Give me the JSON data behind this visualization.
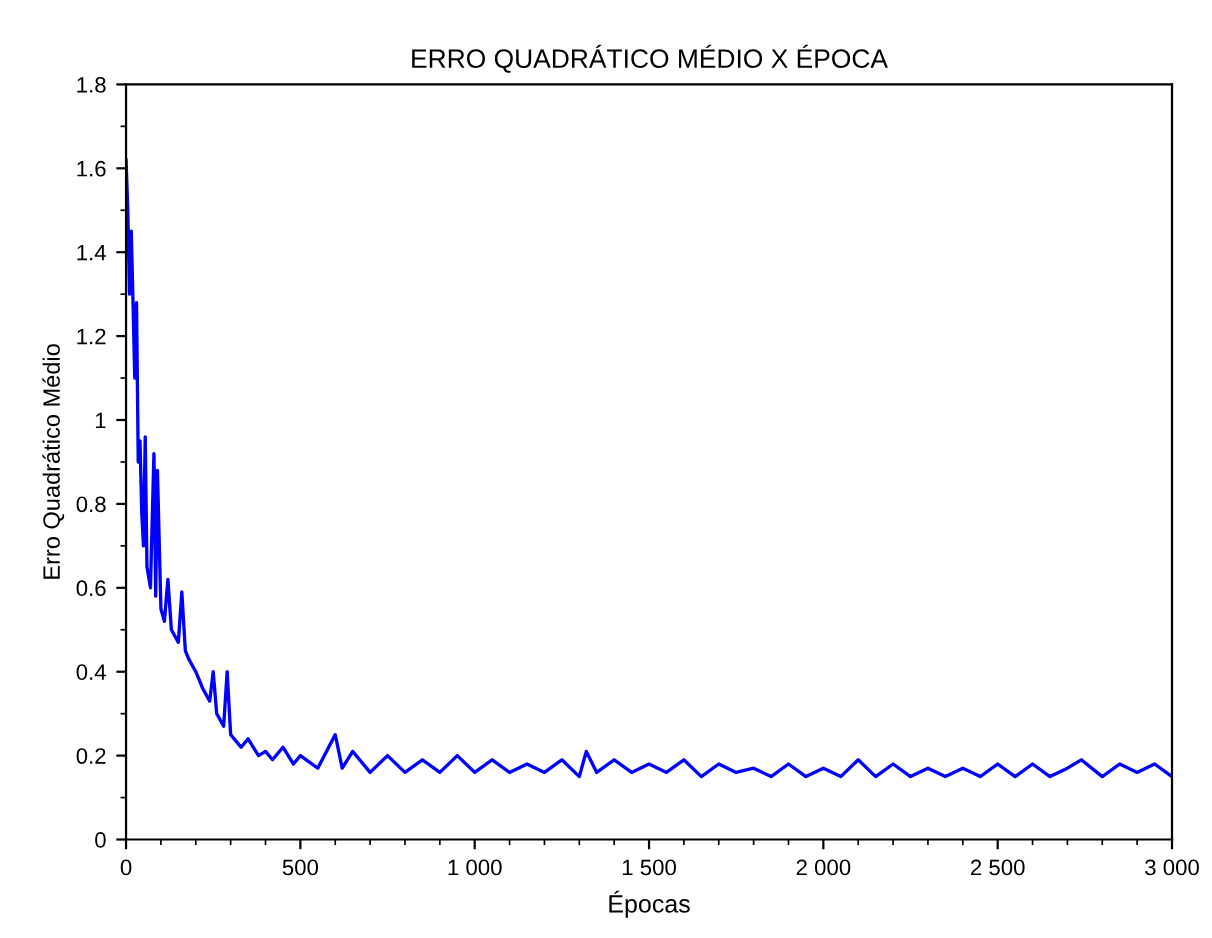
{
  "chart_data": {
    "type": "line",
    "title": "ERRO QUADRÁTICO MÉDIO X ÉPOCA",
    "xlabel": "Épocas",
    "ylabel": "Erro Quadrático Médio",
    "xlim": [
      0,
      3000
    ],
    "ylim": [
      0,
      1.8
    ],
    "xticks": [
      0,
      500,
      {
        "value": 1000,
        "label": "1 000"
      },
      {
        "value": 1500,
        "label": "1 500"
      },
      {
        "value": 2000,
        "label": "2 000"
      },
      {
        "value": 2500,
        "label": "2 500"
      },
      {
        "value": 3000,
        "label": "3 000"
      }
    ],
    "yticks": [
      0,
      0.2,
      0.4,
      0.6,
      0.8,
      1,
      1.2,
      1.4,
      1.6,
      1.8
    ],
    "grid": false,
    "legend": false,
    "marker": "none",
    "line_style": "solid",
    "series": [
      {
        "color": "#0000ff",
        "x": [
          0,
          5,
          10,
          15,
          20,
          25,
          30,
          35,
          40,
          45,
          50,
          55,
          60,
          70,
          80,
          85,
          90,
          100,
          110,
          120,
          130,
          150,
          160,
          170,
          180,
          200,
          220,
          240,
          250,
          260,
          280,
          290,
          300,
          330,
          350,
          380,
          400,
          420,
          450,
          480,
          500,
          550,
          600,
          620,
          650,
          700,
          750,
          800,
          850,
          900,
          950,
          1000,
          1050,
          1100,
          1150,
          1200,
          1250,
          1300,
          1320,
          1350,
          1400,
          1450,
          1500,
          1550,
          1600,
          1650,
          1700,
          1750,
          1800,
          1850,
          1900,
          1950,
          2000,
          2050,
          2100,
          2150,
          2200,
          2250,
          2300,
          2350,
          2400,
          2450,
          2500,
          2550,
          2600,
          2650,
          2700,
          2740,
          2800,
          2850,
          2900,
          2950,
          3000
        ],
        "values": [
          1.62,
          1.5,
          1.3,
          1.45,
          1.28,
          1.1,
          1.28,
          0.9,
          0.95,
          0.78,
          0.7,
          0.96,
          0.65,
          0.6,
          0.92,
          0.58,
          0.88,
          0.55,
          0.52,
          0.62,
          0.5,
          0.47,
          0.59,
          0.45,
          0.43,
          0.4,
          0.36,
          0.33,
          0.4,
          0.3,
          0.27,
          0.4,
          0.25,
          0.22,
          0.24,
          0.2,
          0.21,
          0.19,
          0.22,
          0.18,
          0.2,
          0.17,
          0.25,
          0.17,
          0.21,
          0.16,
          0.2,
          0.16,
          0.19,
          0.16,
          0.2,
          0.16,
          0.19,
          0.16,
          0.18,
          0.16,
          0.19,
          0.15,
          0.21,
          0.16,
          0.19,
          0.16,
          0.18,
          0.16,
          0.19,
          0.15,
          0.18,
          0.16,
          0.17,
          0.15,
          0.18,
          0.15,
          0.17,
          0.15,
          0.19,
          0.15,
          0.18,
          0.15,
          0.17,
          0.15,
          0.17,
          0.15,
          0.18,
          0.15,
          0.18,
          0.15,
          0.17,
          0.19,
          0.15,
          0.18,
          0.16,
          0.18,
          0.15
        ]
      }
    ]
  }
}
